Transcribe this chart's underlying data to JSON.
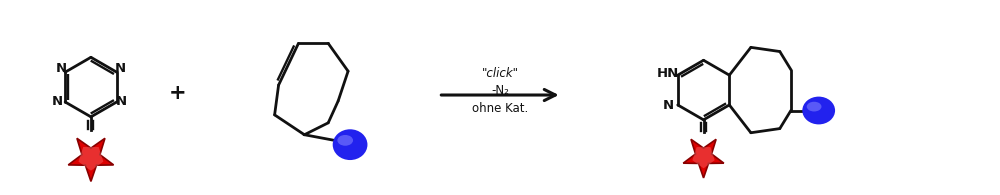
{
  "bg_color": "#ffffff",
  "arrow_color": "#111111",
  "star_color_main": "#dd0000",
  "star_color_light": "#ff8888",
  "star_color_dark": "#880000",
  "ball_color": "#2222ee",
  "ball_color_light": "#8888ff",
  "line_color": "#111111",
  "text_color": "#111111",
  "reaction_text_0": "\"click\"",
  "reaction_text_1": "-N₂",
  "reaction_text_2": "ohne Kat.",
  "plus_symbol": "+",
  "product_HN_label": "HN",
  "product_N_label": "N",
  "figsize": [
    10.0,
    1.95
  ],
  "dpi": 100,
  "lw": 2.0
}
